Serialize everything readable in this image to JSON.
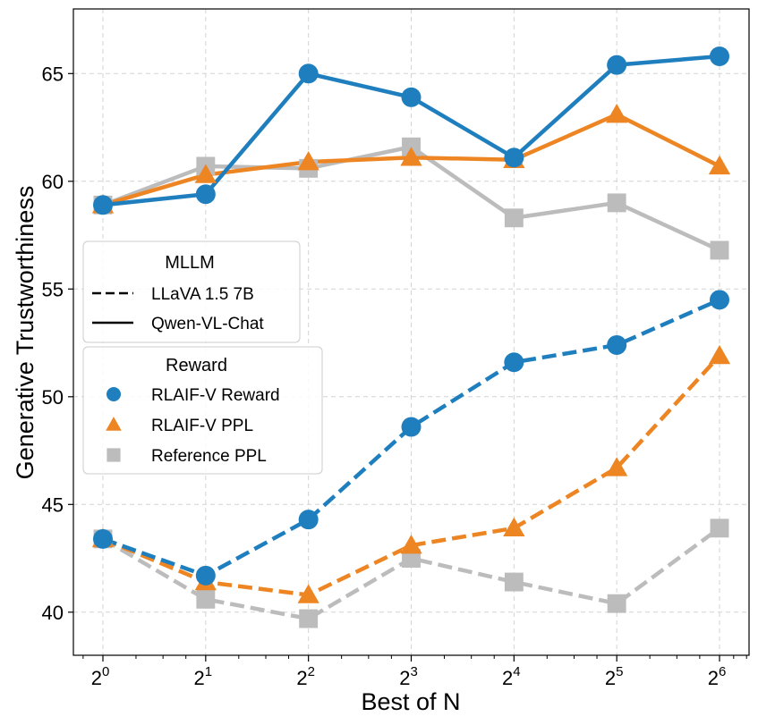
{
  "chart_data": {
    "type": "line",
    "xlabel": "Best of N",
    "ylabel": "Generative Trustworthiness",
    "x_scale": "log2",
    "x": [
      1,
      2,
      4,
      8,
      16,
      32,
      64
    ],
    "x_tick_bases": [
      "2",
      "2",
      "2",
      "2",
      "2",
      "2",
      "2"
    ],
    "x_tick_exponents": [
      "0",
      "1",
      "2",
      "3",
      "4",
      "5",
      "6"
    ],
    "ylim": [
      38,
      68
    ],
    "y_ticks": [
      "40",
      "45",
      "50",
      "55",
      "60",
      "65"
    ],
    "grid": true,
    "legends": [
      {
        "title": "MLLM",
        "placement": "center-left",
        "entries": [
          {
            "label": "LLaVA 1.5 7B",
            "line_style": "dashed"
          },
          {
            "label": "Qwen-VL-Chat",
            "line_style": "solid"
          }
        ]
      },
      {
        "title": "Reward",
        "placement": "center-left",
        "entries": [
          {
            "label": "RLAIF-V Reward",
            "marker": "circle",
            "color": "#1f7fbe"
          },
          {
            "label": "RLAIF-V PPL",
            "marker": "triangle",
            "color": "#ee8523"
          },
          {
            "label": "Reference PPL",
            "marker": "square",
            "color": "#bcbcbc"
          }
        ]
      }
    ],
    "series": [
      {
        "name": "RLAIF-V Reward",
        "mllm": "Qwen-VL-Chat",
        "line_style": "solid",
        "marker": "circle",
        "color": "#1f7fbe",
        "values": [
          58.9,
          59.4,
          65.0,
          63.9,
          61.1,
          65.4,
          65.8
        ]
      },
      {
        "name": "RLAIF-V PPL",
        "mllm": "Qwen-VL-Chat",
        "line_style": "solid",
        "marker": "triangle",
        "color": "#ee8523",
        "values": [
          58.9,
          60.3,
          60.9,
          61.1,
          61.0,
          63.1,
          60.7
        ]
      },
      {
        "name": "Reference PPL",
        "mllm": "Qwen-VL-Chat",
        "line_style": "solid",
        "marker": "square",
        "color": "#bcbcbc",
        "values": [
          58.9,
          60.7,
          60.6,
          61.6,
          58.3,
          59.0,
          56.8
        ]
      },
      {
        "name": "RLAIF-V Reward",
        "mllm": "LLaVA 1.5 7B",
        "line_style": "dashed",
        "marker": "circle",
        "color": "#1f7fbe",
        "values": [
          43.4,
          41.7,
          44.3,
          48.6,
          51.6,
          52.4,
          54.5
        ]
      },
      {
        "name": "RLAIF-V PPL",
        "mllm": "LLaVA 1.5 7B",
        "line_style": "dashed",
        "marker": "triangle",
        "color": "#ee8523",
        "values": [
          43.4,
          41.4,
          40.8,
          43.1,
          43.9,
          46.7,
          51.9
        ]
      },
      {
        "name": "Reference PPL",
        "mllm": "LLaVA 1.5 7B",
        "line_style": "dashed",
        "marker": "square",
        "color": "#bcbcbc",
        "values": [
          43.4,
          40.6,
          39.7,
          42.5,
          41.4,
          40.4,
          43.9
        ]
      }
    ]
  }
}
